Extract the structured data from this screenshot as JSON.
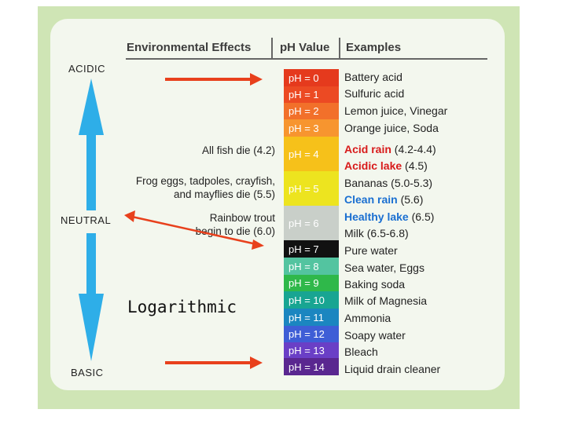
{
  "headers": {
    "effects": "Environmental Effects",
    "ph": "pH Value",
    "examples": "Examples"
  },
  "scale": {
    "top": "ACIDIC",
    "middle": "NEUTRAL",
    "bottom": "BASIC"
  },
  "annotation": "Logarithmic",
  "effects": [
    {
      "text": "All fish die (4.2)"
    },
    {
      "text": "Frog eggs, tadpoles, crayfish,"
    },
    {
      "text": "and mayflies die (5.5)"
    },
    {
      "text": "Rainbow trout"
    },
    {
      "text": "begin to die (6.0)"
    }
  ],
  "ph_values": [
    {
      "label": "pH = 0",
      "color": "#e53a1d"
    },
    {
      "label": "pH = 1",
      "color": "#ec4a23"
    },
    {
      "label": "pH = 2",
      "color": "#f2702a"
    },
    {
      "label": "pH = 3",
      "color": "#f7952f"
    },
    {
      "label": "pH = 4",
      "color": "#f6c11a"
    },
    {
      "label": "pH = 5",
      "color": "#ede41f"
    },
    {
      "label": "pH = 6",
      "color": "#c9cfc9"
    },
    {
      "label": "pH = 7",
      "color": "#111111"
    },
    {
      "label": "pH = 8",
      "color": "#53c4a0"
    },
    {
      "label": "pH = 9",
      "color": "#2fb84a"
    },
    {
      "label": "pH = 10",
      "color": "#18a592"
    },
    {
      "label": "pH = 11",
      "color": "#1b86c0"
    },
    {
      "label": "pH = 12",
      "color": "#3e5ed6"
    },
    {
      "label": "pH = 13",
      "color": "#6a3fc6"
    },
    {
      "label": "pH = 14",
      "color": "#5a2790"
    }
  ],
  "examples": [
    {
      "highlight": "",
      "text": "Battery acid"
    },
    {
      "highlight": "",
      "text": "Sulfuric acid"
    },
    {
      "highlight": "",
      "text": "Lemon juice, Vinegar"
    },
    {
      "highlight": "",
      "text": "Orange juice, Soda"
    },
    {
      "highlight": "Acid rain",
      "text": " (4.2-4.4)"
    },
    {
      "highlight": "Acidic lake",
      "text": " (4.5)"
    },
    {
      "highlight": "",
      "text": "Bananas (5.0-5.3)"
    },
    {
      "highlight_blue": "Clean rain",
      "text": " (5.6)"
    },
    {
      "highlight_blue": "Healthy lake",
      "text": " (6.5)"
    },
    {
      "highlight": "",
      "text": "Milk (6.5-6.8)"
    },
    {
      "highlight": "",
      "text": "Pure water"
    },
    {
      "highlight": "",
      "text": "Sea water, Eggs"
    },
    {
      "highlight": "",
      "text": "Baking soda"
    },
    {
      "highlight": "",
      "text": "Milk of Magnesia"
    },
    {
      "highlight": "",
      "text": "Ammonia"
    },
    {
      "highlight": "",
      "text": "Soapy water"
    },
    {
      "highlight": "",
      "text": "Bleach"
    },
    {
      "highlight": "",
      "text": "Liquid drain cleaner"
    }
  ],
  "colors": {
    "axis": "#2eaee8",
    "arrow": "#e8401c"
  }
}
